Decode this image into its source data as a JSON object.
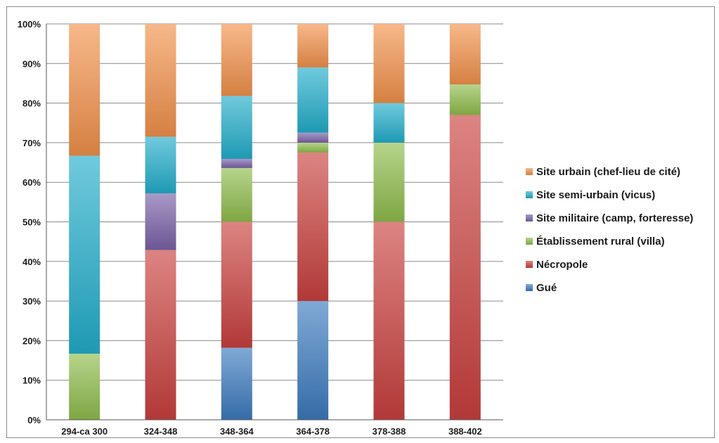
{
  "chart_data": {
    "type": "bar",
    "stacked": true,
    "percent": true,
    "categories": [
      "294-ca 300",
      "324-348",
      "348-364",
      "364-378",
      "378-388",
      "388-402"
    ],
    "series": [
      {
        "name": "Gué",
        "color": "#3b7bbf",
        "values": [
          0,
          0,
          18.2,
          30,
          0,
          0
        ]
      },
      {
        "name": "Nécropole",
        "color": "#c9413e",
        "values": [
          0,
          42.9,
          31.8,
          37.5,
          50,
          77
        ]
      },
      {
        "name": "Établissement rural (villa)",
        "color": "#8fbd4c",
        "values": [
          16.7,
          0,
          13.6,
          2.5,
          20,
          7.7
        ]
      },
      {
        "name": "Site militaire (camp, forteresse)",
        "color": "#7a62a8",
        "values": [
          0,
          14.3,
          2.3,
          2.5,
          0,
          0
        ]
      },
      {
        "name": "Site semi-urbain (vicus)",
        "color": "#23aecb",
        "values": [
          50,
          14.3,
          15.9,
          16.5,
          10,
          0
        ]
      },
      {
        "name": "Site urbain (chef-lieu de cité)",
        "color": "#f2924b",
        "values": [
          33.3,
          28.5,
          18.2,
          11,
          20,
          15.3
        ]
      }
    ],
    "yticks": [
      "0%",
      "10%",
      "20%",
      "30%",
      "40%",
      "50%",
      "60%",
      "70%",
      "80%",
      "90%",
      "100%"
    ],
    "ylim": [
      0,
      100
    ],
    "grid": true,
    "legend_position": "right"
  }
}
